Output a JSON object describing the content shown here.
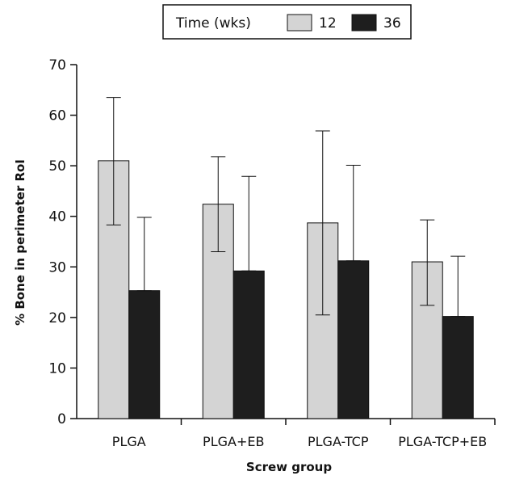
{
  "chart_data": {
    "type": "bar",
    "title": "",
    "xlabel": "Screw group",
    "ylabel": "% Bone in perimeter RoI",
    "ylim": [
      0,
      70
    ],
    "yticks": [
      0,
      10,
      20,
      30,
      40,
      50,
      60,
      70
    ],
    "grid": false,
    "legend": {
      "title": "Time (wks)",
      "placement": "top-center"
    },
    "categories": [
      "PLGA",
      "PLGA+EB",
      "PLGA-TCP",
      "PLGA-TCP+EB"
    ],
    "series": [
      {
        "name": "12",
        "color": "#d4d4d4",
        "values": [
          51.0,
          42.4,
          38.7,
          31.0
        ],
        "err_low": [
          38.3,
          33.0,
          20.5,
          22.4
        ],
        "err_high": [
          63.5,
          51.8,
          56.9,
          39.3
        ]
      },
      {
        "name": "36",
        "color": "#1e1e1e",
        "values": [
          25.3,
          29.2,
          31.2,
          20.2
        ],
        "err_low": [
          25.3,
          29.2,
          31.2,
          20.2
        ],
        "err_high": [
          39.8,
          47.9,
          50.1,
          32.1
        ]
      }
    ]
  }
}
